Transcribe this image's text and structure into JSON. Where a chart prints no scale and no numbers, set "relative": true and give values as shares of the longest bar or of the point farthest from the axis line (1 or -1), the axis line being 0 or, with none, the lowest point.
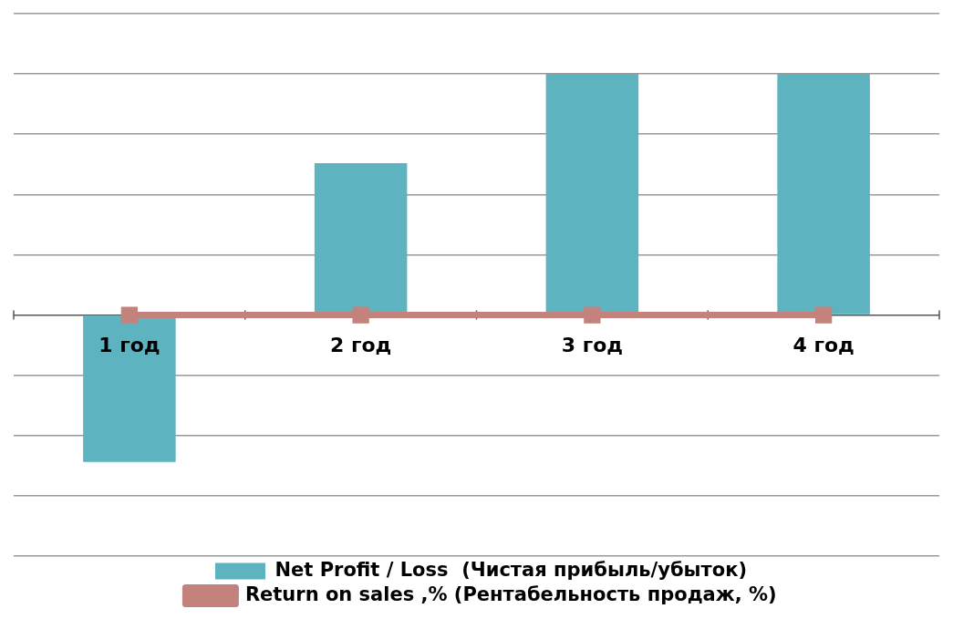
{
  "chart_data": {
    "type": "bar",
    "relative": true,
    "categories": [
      "1 год",
      "2 год",
      "3 год",
      "4 год"
    ],
    "series": [
      {
        "name": "Net Profit / Loss  (Чистая прибыль/убыток)",
        "color": "#5eb3c1",
        "values": [
          -0.61,
          0.63,
          1,
          1
        ]
      },
      {
        "name": "Return on sales ,% (Рентабельность продаж, %)",
        "type": "line",
        "color": "#c4827c",
        "values": [
          0,
          0,
          0,
          0
        ],
        "marker": "square"
      }
    ],
    "grid": "y",
    "legend": "bottom"
  }
}
